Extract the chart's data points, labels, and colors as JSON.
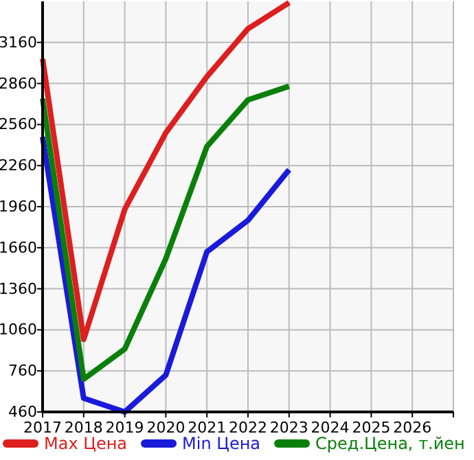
{
  "chart_data": {
    "type": "line",
    "x": [
      2017,
      2018,
      2019,
      2020,
      2021,
      2022,
      2023
    ],
    "series": [
      {
        "name": "Max Цена",
        "color": "#dd1f1f",
        "values": [
          3040,
          990,
          1940,
          2500,
          2910,
          3260,
          3450
        ]
      },
      {
        "name": "Min Цена",
        "color": "#1a1adc",
        "values": [
          2470,
          560,
          460,
          730,
          1630,
          1860,
          2230
        ]
      },
      {
        "name": "Сред.Цена, т.йен",
        "color": "#0a800a",
        "values": [
          2750,
          700,
          920,
          1580,
          2400,
          2740,
          2840
        ]
      }
    ],
    "xlim": [
      2017,
      2027
    ],
    "xticks": [
      2017,
      2018,
      2019,
      2020,
      2021,
      2022,
      2023,
      2024,
      2025,
      2026,
      {
        "value": 2027,
        "label": null
      }
    ],
    "ylim": [
      460,
      3460
    ],
    "yticks": [
      460,
      760,
      1060,
      1360,
      1660,
      1960,
      2260,
      2560,
      2860,
      3160
    ],
    "grid": true,
    "legend": "bottom",
    "marker": "none",
    "line_style": "solid"
  }
}
